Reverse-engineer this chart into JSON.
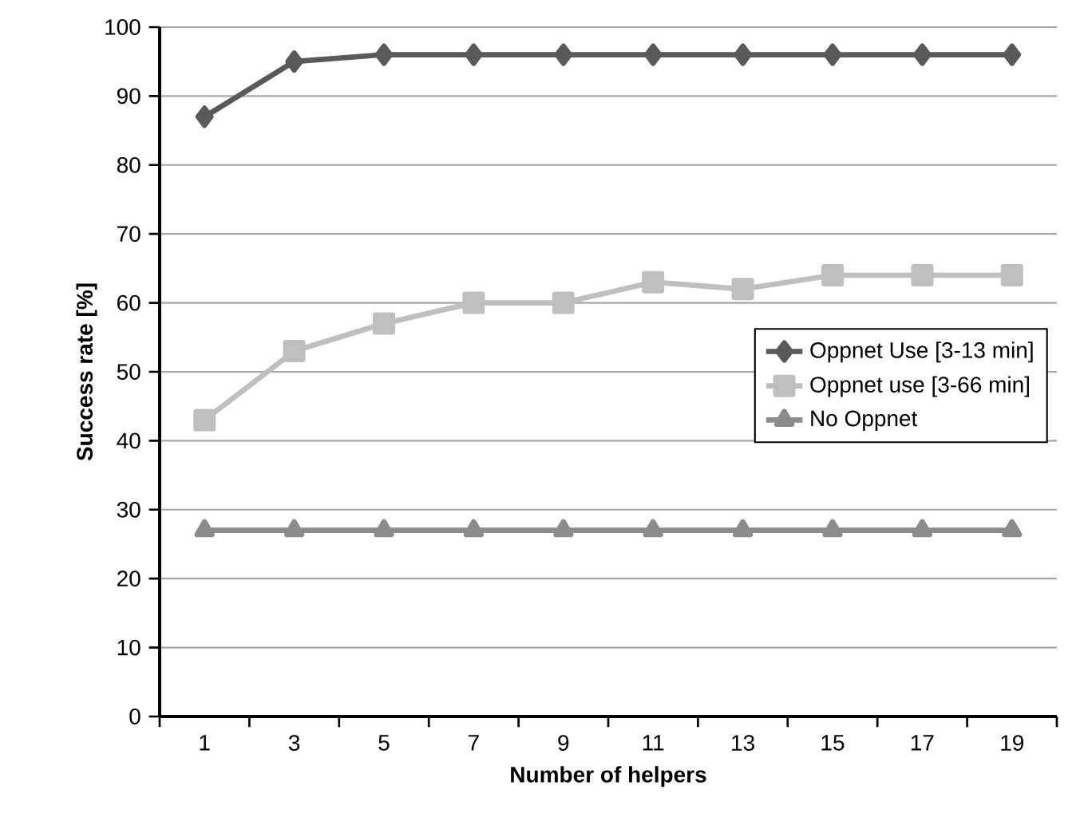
{
  "chart_data": {
    "type": "line",
    "xlabel": "Number of helpers",
    "ylabel": "Success rate [%]",
    "categories": [
      "1",
      "3",
      "5",
      "7",
      "9",
      "11",
      "13",
      "15",
      "17",
      "19"
    ],
    "series": [
      {
        "name": "Oppnet Use [3-13 min]",
        "color": "#595959",
        "marker": "diamond",
        "values": [
          87,
          95,
          96,
          96,
          96,
          96,
          96,
          96,
          96,
          96
        ]
      },
      {
        "name": "Oppnet use [3-66 min]",
        "color": "#bfbfbf",
        "marker": "square",
        "values": [
          43,
          53,
          57,
          60,
          60,
          63,
          62,
          64,
          64,
          64
        ]
      },
      {
        "name": "No Oppnet",
        "color": "#8c8c8c",
        "marker": "triangle",
        "values": [
          27,
          27,
          27,
          27,
          27,
          27,
          27,
          27,
          27,
          27
        ]
      }
    ],
    "ylim": [
      0,
      100
    ],
    "yticks": [
      0,
      10,
      20,
      30,
      40,
      50,
      60,
      70,
      80,
      90,
      100
    ],
    "grid": "y",
    "legend": "right",
    "line_style": "solid"
  }
}
